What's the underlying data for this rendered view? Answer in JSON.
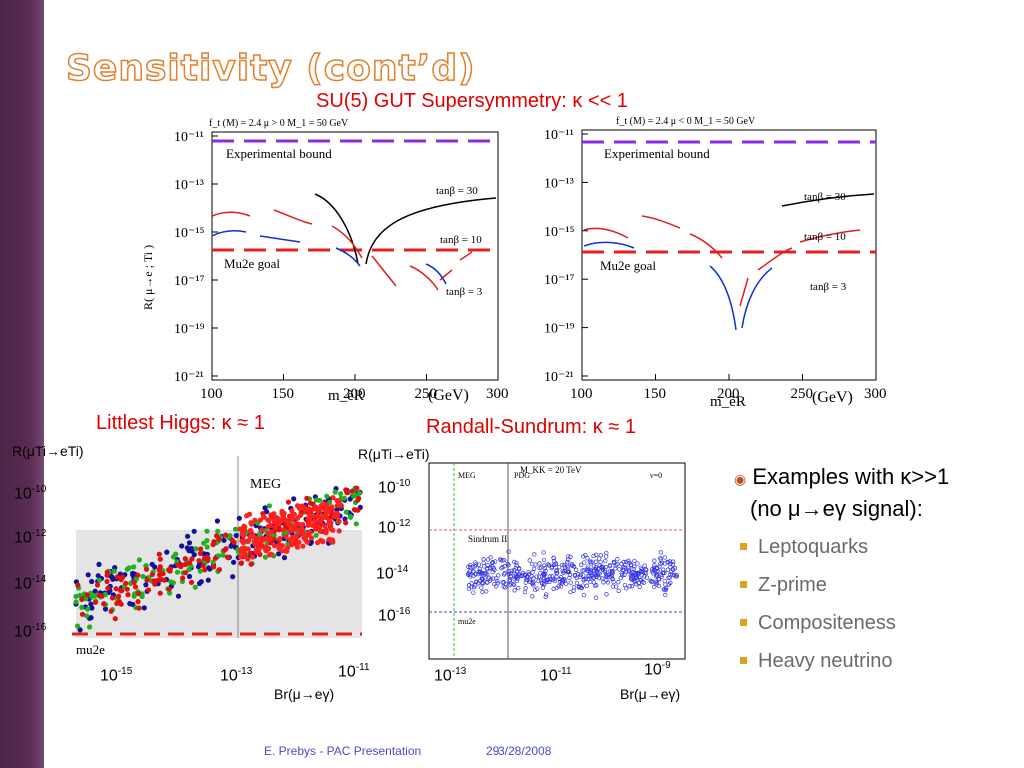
{
  "slide": {
    "title": "Sensitivity (cont’d)",
    "header": "SU(5) GUT Supersymmetry: κ << 1",
    "footer_author": "E. Prebys - PAC Presentation",
    "footer_page": "29",
    "footer_date": "3/28/2008"
  },
  "susy_left": {
    "params": "f_t (M) = 2.4    μ > 0    M_1 = 50 GeV",
    "ylabel": "R( μ→e ; Ti )",
    "y_ticks": [
      "10⁻¹¹",
      "10⁻¹³",
      "10⁻¹⁵",
      "10⁻¹⁷",
      "10⁻¹⁹",
      "10⁻²¹"
    ],
    "x_ticks": [
      "100",
      "150",
      "200",
      "250",
      "300"
    ],
    "xlabel": "m_ẽR",
    "xunit": "(GeV)",
    "exp_bound": "Experimental bound",
    "goal": "Mu2e goal",
    "tb30": "tanβ = 30",
    "tb10": "tanβ = 10",
    "tb3": "tanβ = 3"
  },
  "susy_right": {
    "params": "f_t (M) = 2.4    μ < 0    M_1 = 50 GeV",
    "y_ticks": [
      "10⁻¹¹",
      "10⁻¹³",
      "10⁻¹⁵",
      "10⁻¹⁷",
      "10⁻¹⁹",
      "10⁻²¹"
    ],
    "x_ticks": [
      "100",
      "150",
      "200",
      "250",
      "300"
    ],
    "xlabel": "m_ẽR",
    "xunit": "(GeV)",
    "exp_bound": "Experimental bound",
    "goal": "Mu2e goal",
    "tb30": "tanβ = 30",
    "tb10": "tanβ = 10",
    "tb3": "tanβ = 3"
  },
  "littlest": {
    "header": "Littlest Higgs: κ ≈ 1",
    "ylabel": "R(μTi→eTi)",
    "meg": "MEG",
    "mu2e": "mu2e",
    "y_ticks": [
      {
        "b": "10",
        "e": "-10"
      },
      {
        "b": "10",
        "e": "-12"
      },
      {
        "b": "10",
        "e": "-14"
      },
      {
        "b": "10",
        "e": "-16"
      }
    ],
    "x_ticks": [
      {
        "b": "10",
        "e": "-15"
      },
      {
        "b": "10",
        "e": "-13"
      },
      {
        "b": "10",
        "e": "-11"
      }
    ],
    "xlabel": "Br(μ→eγ)"
  },
  "rs": {
    "header": "Randall-Sundrum: κ ≈ 1",
    "ylabel": "R(μTi→eTi)",
    "mkk": "M_KK = 20 TeV",
    "meg": "MEG",
    "pdg": "PDG",
    "nu": "ν=0",
    "sindrum": "Sindrum II",
    "mu2e": "mu2e",
    "y_ticks": [
      {
        "b": "10",
        "e": "-10"
      },
      {
        "b": "10",
        "e": "-12"
      },
      {
        "b": "10",
        "e": "-14"
      },
      {
        "b": "10",
        "e": "-16"
      }
    ],
    "x_ticks": [
      {
        "b": "10",
        "e": "-13"
      },
      {
        "b": "10",
        "e": "-11"
      },
      {
        "b": "10",
        "e": "-9"
      }
    ],
    "xlabel": "Br(μ→eγ)"
  },
  "bullets": {
    "main_line1": "Examples with κ>>1",
    "main_line2": "(no μ→eγ signal):",
    "items": [
      "Leptoquarks",
      "Z-prime",
      "Compositeness",
      "Heavy neutrino"
    ]
  },
  "colors": {
    "title_outline": "#e0802c",
    "header_red": "#e00000",
    "bound_purple": "#8a2be2",
    "goal_red": "#e02020",
    "bullet_square": "#e0a020"
  }
}
